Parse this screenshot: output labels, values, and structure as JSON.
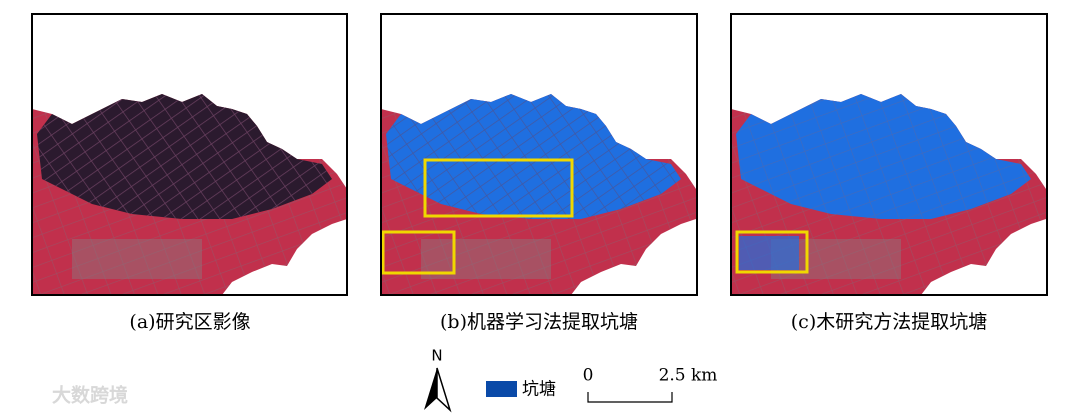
{
  "panels": [
    {
      "caption": "(a)研究区影像"
    },
    {
      "caption": "(b)机器学习法提取坑塘"
    },
    {
      "caption": "(c)木研究方法提取坑塘"
    }
  ],
  "legend": {
    "label": "坑塘"
  },
  "scale_bar": {
    "start": "0",
    "end": "2.5 km"
  },
  "north_arrow": {
    "label": "N"
  },
  "watermark": "大数跨境"
}
